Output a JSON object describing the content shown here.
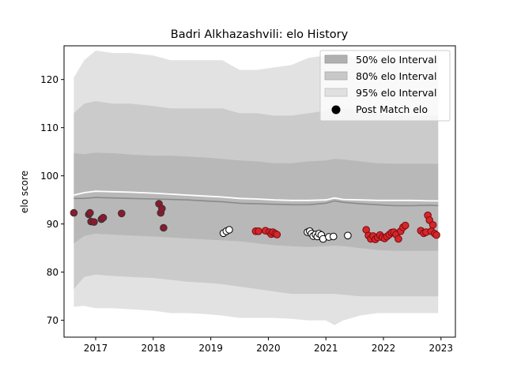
{
  "chart_data": {
    "type": "scatter",
    "title": "Badri Alkhazashvili: elo History",
    "xlabel": "",
    "ylabel": "elo score",
    "xlim": [
      2016.45,
      2023.25
    ],
    "ylim": [
      66.5,
      127.0
    ],
    "x_ticks": [
      2017,
      2018,
      2019,
      2020,
      2021,
      2022,
      2023
    ],
    "y_ticks": [
      70,
      80,
      90,
      100,
      110,
      120
    ],
    "grid": false,
    "legend_position": "upper right",
    "legend": [
      {
        "label": "50% elo Interval",
        "kind": "band",
        "color": "#b0b0b0"
      },
      {
        "label": "80% elo Interval",
        "kind": "band",
        "color": "#c8c8c8"
      },
      {
        "label": "95% elo Interval",
        "kind": "band",
        "color": "#e0e0e0"
      },
      {
        "label": "Post Match elo",
        "kind": "marker",
        "color": "#000000"
      }
    ],
    "colors": {
      "band95": "#e2e2e2",
      "band80": "#cbcbcb",
      "band50": "#b8b8b8",
      "median_line": "#8a8a8a",
      "mean_line": "#ffffff",
      "loss_fill": "#8b1a2e",
      "loss_edge": "#333333",
      "draw_fill": "#ffffff",
      "draw_edge": "#000000",
      "win_fill": "#d62728",
      "win_edge": "#7a0a14"
    },
    "bands": {
      "x": [
        2016.62,
        2016.8,
        2017.0,
        2017.3,
        2017.6,
        2018.0,
        2018.3,
        2018.6,
        2018.9,
        2019.2,
        2019.5,
        2019.8,
        2020.1,
        2020.4,
        2020.7,
        2021.0,
        2021.15,
        2021.3,
        2021.6,
        2021.9,
        2022.2,
        2022.5,
        2022.8,
        2022.95
      ],
      "p95_hi": [
        120.4,
        124.0,
        126.0,
        125.5,
        125.5,
        125.0,
        124.0,
        124.0,
        124.0,
        124.0,
        122.0,
        122.0,
        122.5,
        123.0,
        124.5,
        125.0,
        125.5,
        125.5,
        124.0,
        124.0,
        124.0,
        124.0,
        124.0,
        124.0
      ],
      "p80_hi": [
        113.0,
        115.0,
        115.5,
        115.0,
        115.0,
        114.5,
        114.0,
        114.0,
        114.0,
        114.0,
        113.0,
        113.0,
        112.5,
        112.5,
        113.0,
        113.5,
        114.5,
        114.0,
        113.5,
        113.0,
        112.5,
        112.5,
        112.5,
        112.5
      ],
      "p50_hi": [
        104.7,
        104.5,
        104.8,
        104.7,
        104.4,
        104.2,
        104.2,
        104.0,
        103.8,
        103.5,
        103.2,
        103.0,
        102.6,
        102.6,
        103.0,
        103.2,
        103.5,
        103.4,
        103.0,
        102.6,
        102.5,
        102.5,
        102.5,
        102.5
      ],
      "p50_lo": [
        86.0,
        87.5,
        88.0,
        87.8,
        87.6,
        87.4,
        87.2,
        87.0,
        86.8,
        86.6,
        86.4,
        86.0,
        85.6,
        85.4,
        85.2,
        85.4,
        85.5,
        85.4,
        85.0,
        84.6,
        84.4,
        84.4,
        84.4,
        84.4
      ],
      "p80_lo": [
        76.5,
        79.0,
        79.5,
        79.2,
        79.0,
        78.8,
        78.4,
        78.0,
        77.8,
        77.5,
        77.0,
        76.5,
        76.0,
        75.5,
        75.5,
        75.5,
        75.5,
        75.3,
        75.0,
        75.0,
        75.0,
        75.0,
        75.0,
        75.0
      ],
      "p95_lo": [
        72.8,
        73.0,
        72.5,
        72.5,
        72.3,
        72.0,
        71.5,
        71.5,
        71.3,
        71.0,
        70.5,
        70.5,
        70.5,
        70.3,
        70.0,
        70.0,
        69.0,
        70.0,
        71.0,
        71.5,
        71.5,
        71.5,
        71.5,
        71.5
      ],
      "median": [
        95.3,
        95.3,
        95.5,
        95.4,
        95.3,
        95.2,
        95.1,
        95.0,
        94.8,
        94.6,
        94.3,
        94.2,
        94.1,
        94.0,
        94.0,
        94.3,
        94.8,
        94.5,
        94.2,
        94.0,
        93.8,
        93.8,
        93.9,
        93.8
      ],
      "mean": [
        96.0,
        96.5,
        96.8,
        96.7,
        96.6,
        96.4,
        96.2,
        96.0,
        95.8,
        95.6,
        95.3,
        95.2,
        95.0,
        94.9,
        94.9,
        95.0,
        95.4,
        95.1,
        95.0,
        94.9,
        94.9,
        94.9,
        94.8,
        94.8
      ]
    },
    "series": [
      {
        "marker": "loss",
        "x": [
          2016.62,
          2016.88,
          2016.9,
          2016.92,
          2016.97,
          2017.1,
          2017.13,
          2017.45,
          2018.1,
          2018.13,
          2018.15,
          2018.18
        ],
        "y": [
          92.3,
          92.0,
          92.3,
          90.5,
          90.4,
          91.0,
          91.3,
          92.2,
          94.2,
          92.3,
          93.2,
          89.2
        ]
      },
      {
        "marker": "draw",
        "x": [
          2019.22,
          2019.27,
          2019.32,
          2020.68,
          2020.72,
          2020.75,
          2020.78,
          2020.82,
          2020.85,
          2020.88,
          2020.92,
          2020.95,
          2021.05,
          2021.13,
          2021.38
        ],
        "y": [
          88.1,
          88.5,
          88.8,
          88.3,
          88.5,
          88.0,
          87.5,
          87.8,
          87.4,
          88.0,
          87.7,
          86.9,
          87.3,
          87.4,
          87.6
        ]
      },
      {
        "marker": "win",
        "x": [
          2019.78,
          2019.83,
          2019.95,
          2020.02,
          2020.05,
          2020.08,
          2020.12,
          2020.15,
          2021.7,
          2021.74,
          2021.78,
          2021.82,
          2021.86,
          2021.9,
          2021.94,
          2021.98,
          2022.02,
          2022.06,
          2022.1,
          2022.14,
          2022.18,
          2022.22,
          2022.26,
          2022.3,
          2022.34,
          2022.38,
          2022.65,
          2022.7,
          2022.74,
          2022.77,
          2022.8,
          2022.83,
          2022.86,
          2022.89,
          2022.92
        ],
        "y": [
          88.5,
          88.5,
          88.6,
          88.3,
          87.9,
          88.3,
          88.0,
          87.8,
          88.8,
          87.6,
          86.9,
          87.5,
          86.8,
          87.2,
          87.7,
          87.2,
          87.0,
          87.4,
          87.8,
          88.2,
          88.3,
          87.8,
          86.9,
          88.5,
          89.3,
          89.7,
          88.6,
          88.1,
          88.3,
          91.8,
          90.8,
          88.5,
          89.8,
          88.0,
          87.7
        ]
      }
    ]
  }
}
